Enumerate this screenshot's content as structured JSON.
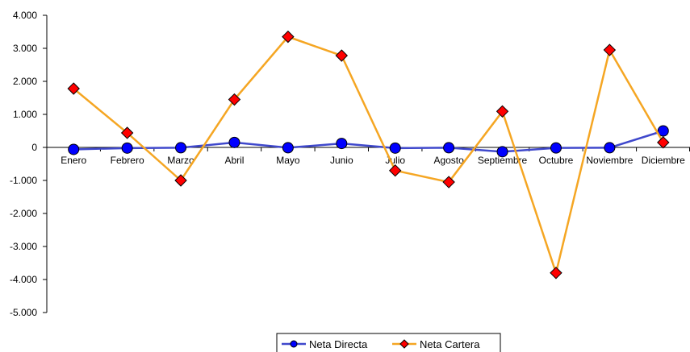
{
  "chart_data": {
    "type": "line",
    "title": "",
    "xlabel": "",
    "ylabel": "",
    "categories": [
      "Enero",
      "Febrero",
      "Marzo",
      "Abril",
      "Mayo",
      "Junio",
      "Julio",
      "Agosto",
      "Septiembre",
      "Octubre",
      "Noviembre",
      "Diciembre"
    ],
    "ylim": [
      -5000,
      4000
    ],
    "yticks": [
      4000,
      3000,
      2000,
      1000,
      0,
      -1000,
      -2000,
      -3000,
      -4000,
      -5000
    ],
    "ytick_labels": [
      "4.000",
      "3.000",
      "2.000",
      "1.000",
      "0",
      "-1.000",
      "-2.000",
      "-3.000",
      "-4.000",
      "-5.000"
    ],
    "grid": false,
    "legend_position": "bottom",
    "series": [
      {
        "name": "Neta Directa",
        "color": "#3f48cc",
        "marker": "circle",
        "marker_fill": "#0000ff",
        "values": [
          -60,
          -20,
          -10,
          150,
          -10,
          120,
          -20,
          -10,
          -130,
          -15,
          -10,
          500
        ]
      },
      {
        "name": "Neta Cartera",
        "color": "#f5a623",
        "marker": "diamond",
        "marker_fill": "#ff0000",
        "values": [
          1780,
          440,
          -1000,
          1450,
          3350,
          2780,
          -700,
          -1050,
          1090,
          -3800,
          2950,
          150
        ]
      }
    ]
  }
}
